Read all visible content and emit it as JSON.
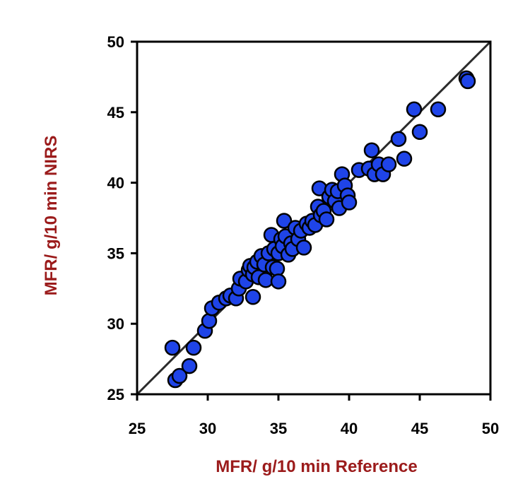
{
  "chart_data": {
    "type": "scatter",
    "title": "",
    "xlabel": "MFR/ g/10 min Reference",
    "ylabel": "MFR/ g/10 min NIRS",
    "xlim": [
      25,
      50
    ],
    "ylim": [
      25,
      50
    ],
    "xticks": [
      "25",
      "30",
      "35",
      "40",
      "45",
      "50"
    ],
    "yticks": [
      "25",
      "30",
      "35",
      "40",
      "45",
      "50"
    ],
    "grid": false,
    "legend": "none",
    "reference_line": {
      "type": "identity",
      "from": [
        25,
        25
      ],
      "to": [
        50,
        50
      ],
      "color": "#2b2b2b"
    },
    "colors": {
      "point_fill": "#1f44e8",
      "point_stroke": "#000000",
      "axis_title": "#9b1b1b"
    },
    "series": [
      {
        "points": [
          [
            27.5,
            28.3
          ],
          [
            27.7,
            26.0
          ],
          [
            28.0,
            26.3
          ],
          [
            28.7,
            27.0
          ],
          [
            29.0,
            28.3
          ],
          [
            29.8,
            29.5
          ],
          [
            30.1,
            30.2
          ],
          [
            30.3,
            31.1
          ],
          [
            30.8,
            31.5
          ],
          [
            31.3,
            31.8
          ],
          [
            31.6,
            32.0
          ],
          [
            32.0,
            31.8
          ],
          [
            32.2,
            32.5
          ],
          [
            32.3,
            33.2
          ],
          [
            32.7,
            33.0
          ],
          [
            32.9,
            33.8
          ],
          [
            33.0,
            34.1
          ],
          [
            33.2,
            31.9
          ],
          [
            33.2,
            33.5
          ],
          [
            33.3,
            34.0
          ],
          [
            33.5,
            34.4
          ],
          [
            33.6,
            33.3
          ],
          [
            33.8,
            34.8
          ],
          [
            34.0,
            34.2
          ],
          [
            34.1,
            33.1
          ],
          [
            34.3,
            35.0
          ],
          [
            34.5,
            36.3
          ],
          [
            34.6,
            34.0
          ],
          [
            34.7,
            35.3
          ],
          [
            34.9,
            33.9
          ],
          [
            35.0,
            35.0
          ],
          [
            35.0,
            33.0
          ],
          [
            35.2,
            36.0
          ],
          [
            35.3,
            35.5
          ],
          [
            35.4,
            37.3
          ],
          [
            35.5,
            36.2
          ],
          [
            35.7,
            34.9
          ],
          [
            35.9,
            35.7
          ],
          [
            36.0,
            35.3
          ],
          [
            36.2,
            36.8
          ],
          [
            36.4,
            36.0
          ],
          [
            36.6,
            36.6
          ],
          [
            36.8,
            35.4
          ],
          [
            37.0,
            37.1
          ],
          [
            37.2,
            36.8
          ],
          [
            37.4,
            37.3
          ],
          [
            37.6,
            37.0
          ],
          [
            37.8,
            38.3
          ],
          [
            37.9,
            39.6
          ],
          [
            38.0,
            37.7
          ],
          [
            38.2,
            38.0
          ],
          [
            38.4,
            37.4
          ],
          [
            38.6,
            39.0
          ],
          [
            38.8,
            39.5
          ],
          [
            39.0,
            38.7
          ],
          [
            39.2,
            39.4
          ],
          [
            39.3,
            38.2
          ],
          [
            39.5,
            40.6
          ],
          [
            39.7,
            39.8
          ],
          [
            39.9,
            39.1
          ],
          [
            40.0,
            38.6
          ],
          [
            40.7,
            40.9
          ],
          [
            41.4,
            41.0
          ],
          [
            41.6,
            42.3
          ],
          [
            41.8,
            40.6
          ],
          [
            42.1,
            41.3
          ],
          [
            42.4,
            40.6
          ],
          [
            42.8,
            41.3
          ],
          [
            43.5,
            43.1
          ],
          [
            43.9,
            41.7
          ],
          [
            44.6,
            45.2
          ],
          [
            45.0,
            43.6
          ],
          [
            46.3,
            45.2
          ],
          [
            48.3,
            47.4
          ],
          [
            48.4,
            47.2
          ]
        ]
      }
    ]
  }
}
